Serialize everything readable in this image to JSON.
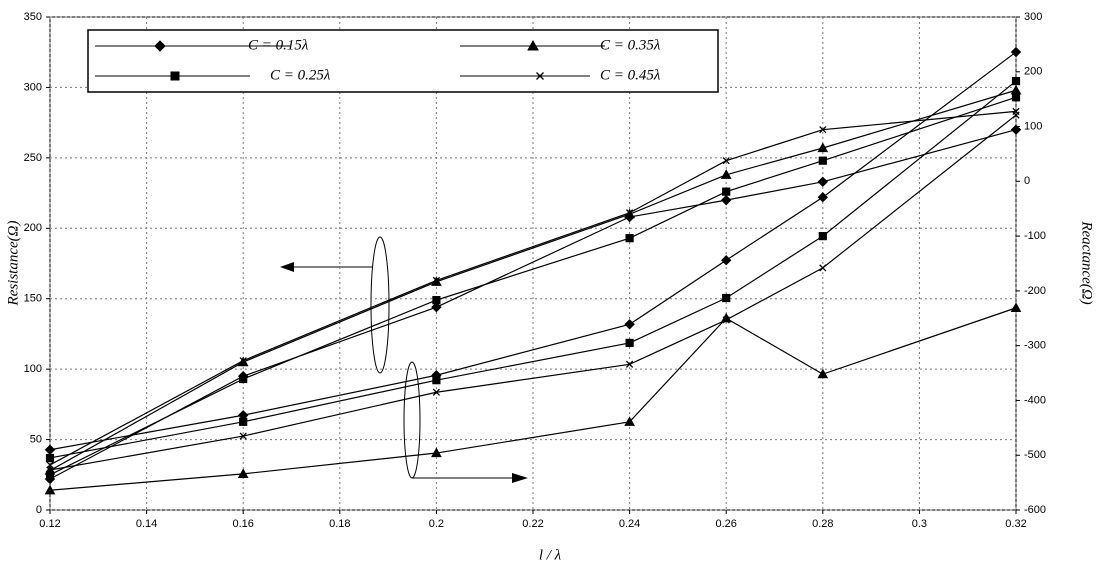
{
  "chart_data": {
    "type": "line",
    "x_label": "l / λ",
    "y_label": "Resistance(Ω)",
    "y2_label": "Reactance(Ω)",
    "x": [
      0.12,
      0.16,
      0.2,
      0.24,
      0.26,
      0.28,
      0.32
    ],
    "xlim": [
      0.12,
      0.32
    ],
    "xticks": [
      0.12,
      0.14,
      0.16,
      0.18,
      0.2,
      0.22,
      0.24,
      0.26,
      0.28,
      0.3,
      0.32
    ],
    "ylim": [
      0,
      350
    ],
    "yticks": [
      0,
      50,
      100,
      150,
      200,
      250,
      300,
      350
    ],
    "y2lim": [
      -600,
      300
    ],
    "y2ticks": [
      -600,
      -500,
      -400,
      -300,
      -200,
      -100,
      0,
      100,
      200,
      300
    ],
    "grid": true,
    "series": [
      {
        "name": "C = 0.15λ",
        "marker": "diamond",
        "color": "#000000",
        "values": [
          22,
          95,
          144,
          208,
          220,
          233,
          270
        ],
        "values_y2": [
          -490,
          -427,
          -354,
          -261,
          -144,
          -29,
          236
        ]
      },
      {
        "name": "C = 0.25λ",
        "marker": "square",
        "color": "#000000",
        "values": [
          25,
          93,
          149,
          193,
          226,
          248,
          293
        ],
        "values_y2": [
          -505,
          -439,
          -363,
          -295,
          -213,
          -100,
          183
        ]
      },
      {
        "name": "C = 0.35λ",
        "marker": "triangle",
        "color": "#000000",
        "values": [
          28,
          105,
          162,
          210,
          238,
          257,
          298
        ],
        "values_y2": [
          -564,
          -534,
          -496,
          -439,
          -250,
          -352,
          -231
        ]
      },
      {
        "name": "C = 0.45λ",
        "marker": "x",
        "color": "#000000",
        "values": [
          32,
          106,
          163,
          211,
          248,
          270,
          283
        ],
        "values_y2": [
          -527,
          -465,
          -385,
          -334,
          -253,
          -158,
          121
        ]
      }
    ]
  }
}
